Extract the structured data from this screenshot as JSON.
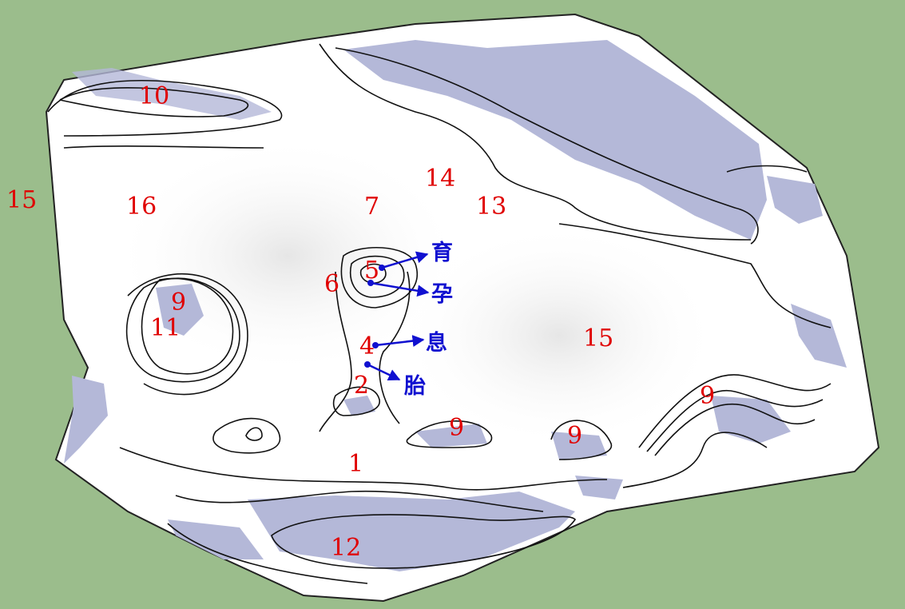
{
  "colors": {
    "background_green": "#9bbd8c",
    "terrain_white": "#ffffff",
    "shadow_blue": "#b4b8d8",
    "label_red": "#e00000",
    "label_blue": "#1010d0"
  },
  "labels": {
    "n1": "1",
    "n2": "2",
    "n4": "4",
    "n5": "5",
    "n6": "6",
    "n7": "7",
    "n9_a": "9",
    "n9_b": "9",
    "n9_c": "9",
    "n9_d": "9",
    "n10": "10",
    "n11": "11",
    "n12": "12",
    "n13": "13",
    "n14": "14",
    "n15_left": "15",
    "n15_center": "15",
    "n16": "16"
  },
  "callouts": {
    "yu": "育",
    "yun": "孕",
    "xi": "息",
    "tai": "胎"
  }
}
